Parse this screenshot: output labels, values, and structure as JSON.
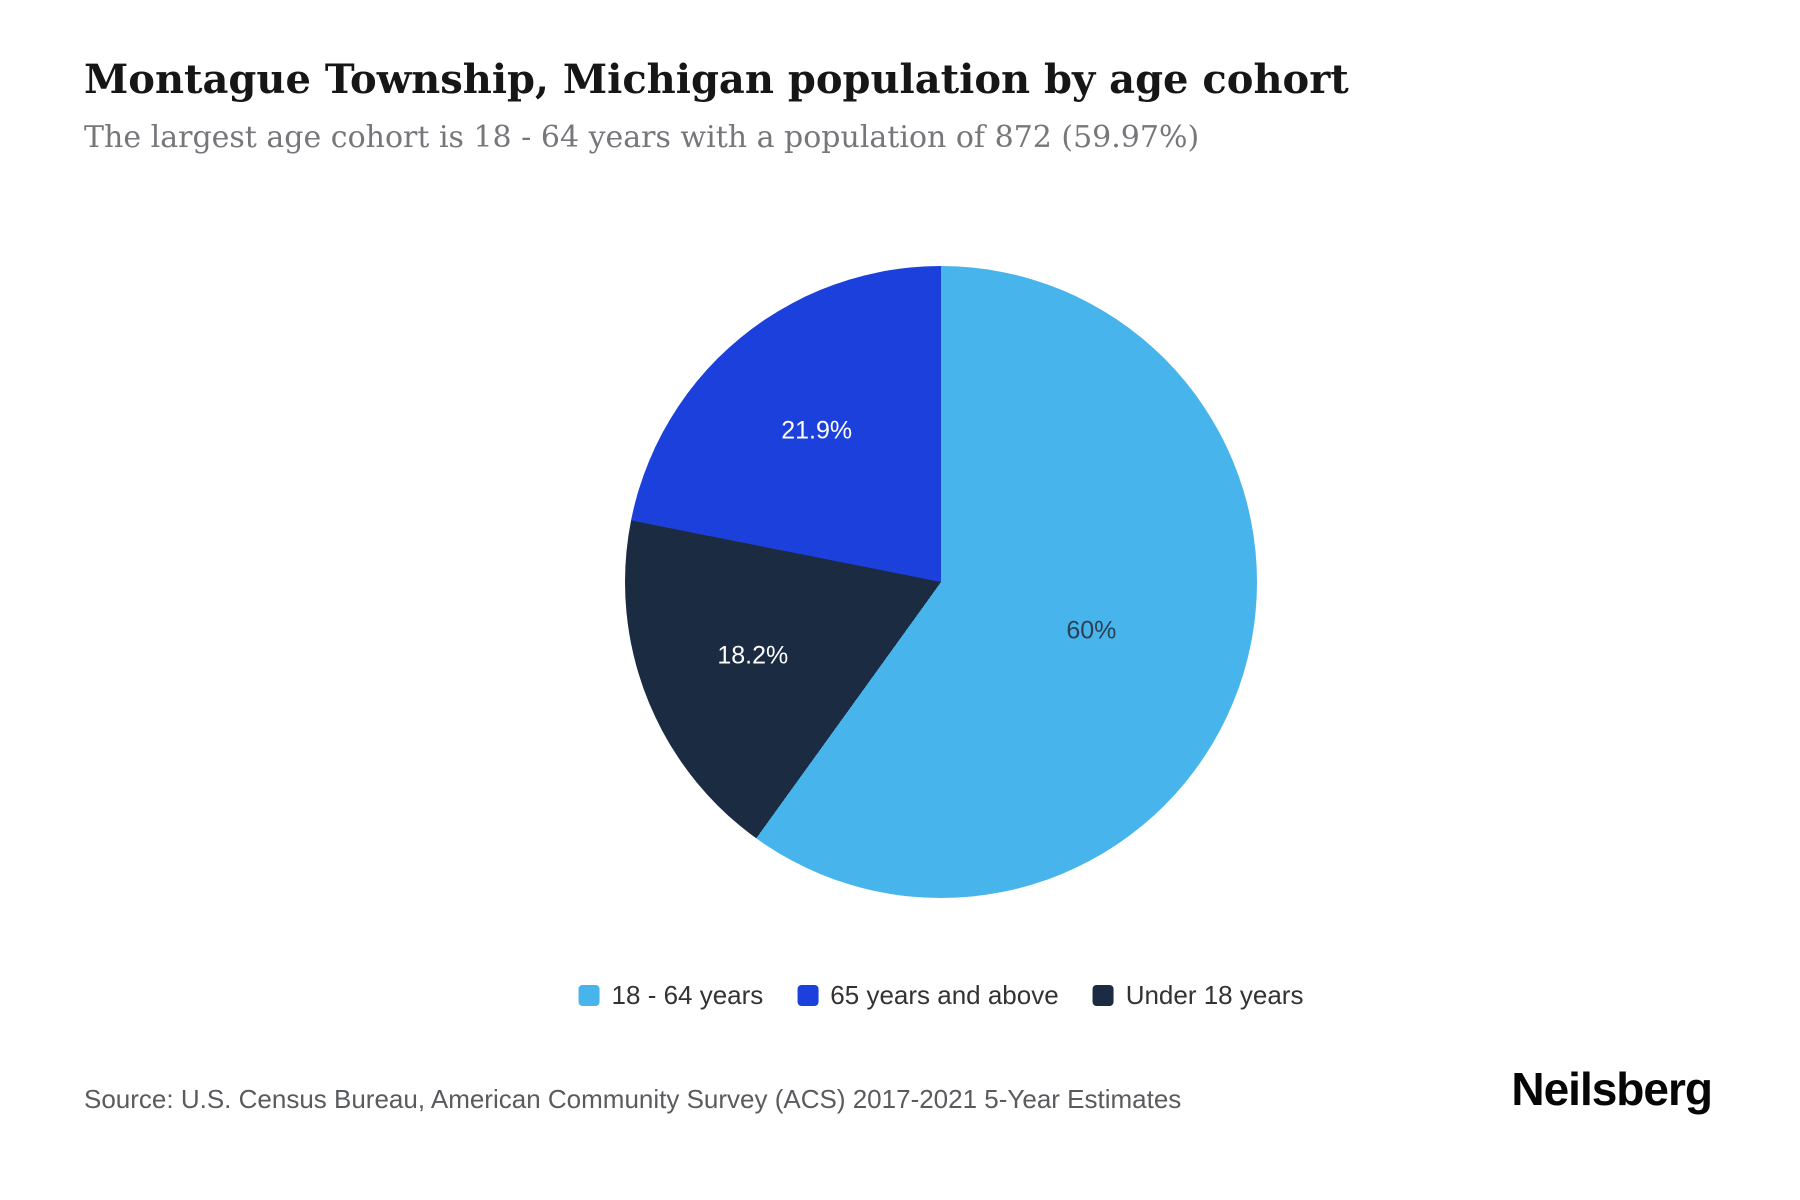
{
  "chart_data": {
    "type": "pie",
    "title": "Montague Township, Michigan population by age cohort",
    "subtitle": "The largest age cohort is 18 - 64 years with a population of 872 (59.97%)",
    "start_angle_deg": 0,
    "direction": "clockwise",
    "slices": [
      {
        "label": "18 - 64 years",
        "value": 60.0,
        "display_pct": "60%",
        "color": "#47B4EC",
        "label_color": "#2D4054"
      },
      {
        "label": "Under 18 years",
        "value": 18.2,
        "display_pct": "18.2%",
        "color": "#1B2B42",
        "label_color": "#FFFFFF"
      },
      {
        "label": "65 years and above",
        "value": 21.9,
        "display_pct": "21.9%",
        "color": "#1C40DB",
        "label_color": "#FFFFFF"
      }
    ],
    "legend": [
      {
        "label": "18 - 64 years",
        "color": "#47B4EC"
      },
      {
        "label": "65 years and above",
        "color": "#1C40DB"
      },
      {
        "label": "Under 18 years",
        "color": "#1B2B42"
      }
    ],
    "legend_position": "bottom-center"
  },
  "footer": {
    "source": "Source: U.S. Census Bureau, American Community Survey (ACS) 2017-2021 5-Year Estimates",
    "brand": "Neilsberg"
  }
}
